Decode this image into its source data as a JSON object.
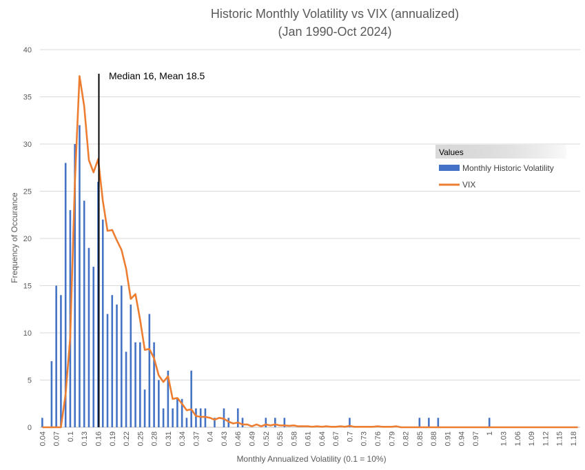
{
  "chart_data": {
    "type": "bar",
    "title": "Historic Monthly Volatility vs VIX (annualized)",
    "subtitle": "(Jan 1990-Oct 2024)",
    "xlabel": "Monthly Annualized Volatility  (0.1 = 10%)",
    "ylabel": "Frequency of Occurance",
    "ylim": [
      0,
      40
    ],
    "yticks": [
      0,
      5,
      10,
      15,
      20,
      25,
      30,
      35,
      40
    ],
    "grid": true,
    "legend_title": "Values",
    "legend_position": "right",
    "annotation": "Median 16, Mean 18.5",
    "marker_x": 0.16,
    "x_start": 0.04,
    "x_step": 0.01,
    "x_end": 1.19,
    "categories_label_every": 3,
    "series": [
      {
        "name": "Monthly Historic Volatility",
        "type": "bar",
        "color": "#4472C4",
        "points": [
          [
            0.04,
            1
          ],
          [
            0.06,
            7
          ],
          [
            0.07,
            15
          ],
          [
            0.08,
            14
          ],
          [
            0.09,
            28
          ],
          [
            0.1,
            23
          ],
          [
            0.11,
            30
          ],
          [
            0.12,
            32
          ],
          [
            0.13,
            24
          ],
          [
            0.14,
            19
          ],
          [
            0.15,
            17
          ],
          [
            0.16,
            26
          ],
          [
            0.17,
            22
          ],
          [
            0.18,
            12
          ],
          [
            0.19,
            14
          ],
          [
            0.2,
            13
          ],
          [
            0.21,
            15
          ],
          [
            0.22,
            8
          ],
          [
            0.23,
            13
          ],
          [
            0.24,
            9
          ],
          [
            0.25,
            9
          ],
          [
            0.26,
            4
          ],
          [
            0.27,
            12
          ],
          [
            0.28,
            9
          ],
          [
            0.29,
            5
          ],
          [
            0.3,
            2
          ],
          [
            0.31,
            6
          ],
          [
            0.32,
            2
          ],
          [
            0.33,
            3
          ],
          [
            0.34,
            3
          ],
          [
            0.35,
            1
          ],
          [
            0.36,
            6
          ],
          [
            0.37,
            2
          ],
          [
            0.38,
            2
          ],
          [
            0.39,
            2
          ],
          [
            0.41,
            1
          ],
          [
            0.43,
            2
          ],
          [
            0.44,
            1
          ],
          [
            0.46,
            2
          ],
          [
            0.47,
            1
          ],
          [
            0.52,
            1
          ],
          [
            0.54,
            1
          ],
          [
            0.56,
            1
          ],
          [
            0.7,
            1
          ],
          [
            0.85,
            1
          ],
          [
            0.87,
            1
          ],
          [
            0.89,
            1
          ],
          [
            1.0,
            1
          ]
        ]
      },
      {
        "name": "VIX",
        "type": "line",
        "color": "#ED7D31",
        "points": [
          [
            0.04,
            0
          ],
          [
            0.05,
            0
          ],
          [
            0.06,
            0
          ],
          [
            0.07,
            0
          ],
          [
            0.08,
            0
          ],
          [
            0.09,
            3.5
          ],
          [
            0.1,
            9.5
          ],
          [
            0.11,
            26
          ],
          [
            0.12,
            37.2
          ],
          [
            0.13,
            34
          ],
          [
            0.14,
            28.3
          ],
          [
            0.15,
            27
          ],
          [
            0.16,
            28.4
          ],
          [
            0.17,
            24
          ],
          [
            0.18,
            20.8
          ],
          [
            0.19,
            20.9
          ],
          [
            0.2,
            19.8
          ],
          [
            0.21,
            18.8
          ],
          [
            0.22,
            16.8
          ],
          [
            0.23,
            13.6
          ],
          [
            0.24,
            14.1
          ],
          [
            0.25,
            11.4
          ],
          [
            0.26,
            8.2
          ],
          [
            0.27,
            8.3
          ],
          [
            0.28,
            7.3
          ],
          [
            0.29,
            5.5
          ],
          [
            0.3,
            4.8
          ],
          [
            0.31,
            5.4
          ],
          [
            0.32,
            3.0
          ],
          [
            0.33,
            3.1
          ],
          [
            0.34,
            2.5
          ],
          [
            0.35,
            1.8
          ],
          [
            0.36,
            1.9
          ],
          [
            0.37,
            1.2
          ],
          [
            0.38,
            1.1
          ],
          [
            0.39,
            1.1
          ],
          [
            0.4,
            1.0
          ],
          [
            0.41,
            0.8
          ],
          [
            0.42,
            1.0
          ],
          [
            0.43,
            0.9
          ],
          [
            0.44,
            0.6
          ],
          [
            0.45,
            0.4
          ],
          [
            0.46,
            0.5
          ],
          [
            0.47,
            0.3
          ],
          [
            0.48,
            0.3
          ],
          [
            0.49,
            0.1
          ],
          [
            0.5,
            0.3
          ],
          [
            0.51,
            0.1
          ],
          [
            0.52,
            0.3
          ],
          [
            0.53,
            0.2
          ],
          [
            0.54,
            0.3
          ],
          [
            0.55,
            0.2
          ],
          [
            0.56,
            0.2
          ],
          [
            0.57,
            0.15
          ],
          [
            0.58,
            0.2
          ],
          [
            0.59,
            0.1
          ],
          [
            0.6,
            0.1
          ],
          [
            0.61,
            0.1
          ],
          [
            0.62,
            0.05
          ],
          [
            0.63,
            0.1
          ],
          [
            0.64,
            0.05
          ],
          [
            0.65,
            0.1
          ],
          [
            0.66,
            0.05
          ],
          [
            0.67,
            0.05
          ],
          [
            0.68,
            0.1
          ],
          [
            0.69,
            0.05
          ],
          [
            0.7,
            0.15
          ],
          [
            0.71,
            0.05
          ],
          [
            0.72,
            0.05
          ],
          [
            0.73,
            0.05
          ],
          [
            0.74,
            0.05
          ],
          [
            0.75,
            0.05
          ],
          [
            0.76,
            0.1
          ],
          [
            0.77,
            0.05
          ],
          [
            0.78,
            0.05
          ],
          [
            0.79,
            0.05
          ],
          [
            0.8,
            0.1
          ],
          [
            0.81,
            0
          ],
          [
            0.82,
            0
          ],
          [
            0.83,
            0
          ],
          [
            0.84,
            0
          ],
          [
            0.85,
            0
          ],
          [
            0.86,
            0
          ],
          [
            0.87,
            0
          ],
          [
            0.88,
            0
          ],
          [
            0.89,
            0
          ],
          [
            0.9,
            0
          ],
          [
            0.91,
            0
          ],
          [
            0.92,
            0
          ],
          [
            0.93,
            0
          ],
          [
            0.94,
            0
          ],
          [
            0.95,
            0
          ],
          [
            0.96,
            0
          ],
          [
            0.97,
            0
          ],
          [
            0.98,
            0
          ],
          [
            0.99,
            0
          ],
          [
            1.0,
            0
          ],
          [
            1.01,
            0
          ],
          [
            1.02,
            0
          ],
          [
            1.03,
            0
          ],
          [
            1.04,
            0
          ],
          [
            1.05,
            0
          ],
          [
            1.06,
            0
          ],
          [
            1.07,
            0
          ],
          [
            1.08,
            0
          ],
          [
            1.09,
            0
          ],
          [
            1.1,
            0
          ],
          [
            1.11,
            0
          ],
          [
            1.12,
            0
          ],
          [
            1.13,
            0
          ],
          [
            1.14,
            0
          ],
          [
            1.15,
            0
          ],
          [
            1.16,
            0
          ],
          [
            1.17,
            0
          ],
          [
            1.18,
            0
          ],
          [
            1.19,
            0
          ]
        ]
      }
    ]
  }
}
